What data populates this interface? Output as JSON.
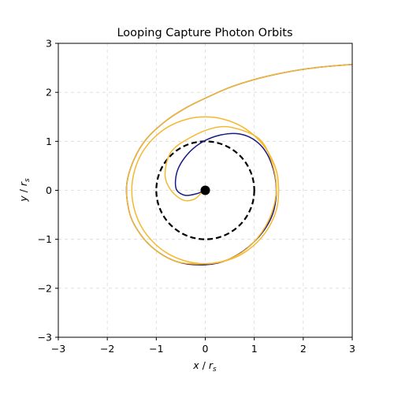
{
  "chart_data": {
    "type": "line",
    "title": "Looping Capture Photon Orbits",
    "xlabel": {
      "var": "x",
      "sep": " / ",
      "sym": "r",
      "sub": "s"
    },
    "ylabel": {
      "var": "y",
      "sep": " / ",
      "sym": "r",
      "sub": "s"
    },
    "xlim": [
      -3,
      3
    ],
    "ylim": [
      -3,
      3
    ],
    "xticks": [
      -3,
      -2,
      -1,
      0,
      1,
      2,
      3
    ],
    "yticks": [
      -3,
      -2,
      -1,
      0,
      1,
      2,
      3
    ],
    "xtick_labels": [
      "−3",
      "−2",
      "−1",
      "0",
      "1",
      "2",
      "3"
    ],
    "ytick_labels": [
      "−3",
      "−2",
      "−1",
      "0",
      "1",
      "2",
      "3"
    ],
    "grid": true,
    "series": [
      {
        "color": "#1a1a80",
        "points": [
          [
            3.0,
            2.57
          ],
          [
            2.5,
            2.53
          ],
          [
            2.0,
            2.47
          ],
          [
            1.5,
            2.38
          ],
          [
            1.0,
            2.26
          ],
          [
            0.5,
            2.1
          ],
          [
            0.0,
            1.88
          ],
          [
            -0.4,
            1.68
          ],
          [
            -0.8,
            1.42
          ],
          [
            -1.2,
            1.05
          ],
          [
            -1.45,
            0.64
          ],
          [
            -1.6,
            0.15
          ],
          [
            -1.58,
            -0.3
          ],
          [
            -1.45,
            -0.7
          ],
          [
            -1.1,
            -1.15
          ],
          [
            -0.6,
            -1.45
          ],
          [
            0.0,
            -1.52
          ],
          [
            0.5,
            -1.4
          ],
          [
            1.0,
            -1.05
          ],
          [
            1.35,
            -0.55
          ],
          [
            1.45,
            0.0
          ],
          [
            1.35,
            0.55
          ],
          [
            1.1,
            0.95
          ],
          [
            0.7,
            1.15
          ],
          [
            0.2,
            1.1
          ],
          [
            -0.25,
            0.85
          ],
          [
            -0.55,
            0.45
          ],
          [
            -0.6,
            0.05
          ],
          [
            -0.42,
            -0.1
          ],
          [
            -0.18,
            -0.07
          ],
          [
            -0.05,
            -0.02
          ]
        ]
      },
      {
        "color": "#f5b82e",
        "points": [
          [
            3.0,
            2.57
          ],
          [
            2.5,
            2.53
          ],
          [
            2.0,
            2.47
          ],
          [
            1.5,
            2.38
          ],
          [
            1.0,
            2.26
          ],
          [
            0.5,
            2.1
          ],
          [
            0.0,
            1.88
          ],
          [
            -0.4,
            1.68
          ],
          [
            -0.8,
            1.42
          ],
          [
            -1.2,
            1.05
          ],
          [
            -1.45,
            0.64
          ],
          [
            -1.6,
            0.15
          ],
          [
            -1.58,
            -0.3
          ],
          [
            -1.45,
            -0.7
          ],
          [
            -1.1,
            -1.15
          ],
          [
            -0.6,
            -1.45
          ],
          [
            0.0,
            -1.5
          ],
          [
            0.5,
            -1.4
          ],
          [
            0.95,
            -1.1
          ],
          [
            1.3,
            -0.6
          ],
          [
            1.45,
            0.0
          ],
          [
            1.35,
            0.6
          ],
          [
            1.1,
            1.05
          ],
          [
            0.6,
            1.27
          ],
          [
            0.2,
            1.28
          ],
          [
            -0.3,
            1.08
          ],
          [
            -0.7,
            0.78
          ],
          [
            -0.82,
            0.32
          ],
          [
            -0.7,
            0.0
          ],
          [
            -0.45,
            -0.2
          ],
          [
            -0.22,
            -0.18
          ],
          [
            -0.08,
            -0.05
          ]
        ]
      },
      {
        "color": "#f5b82e",
        "points": [
          [
            1.5,
            0.0
          ],
          [
            1.46,
            0.37
          ],
          [
            1.3,
            0.75
          ],
          [
            1.06,
            1.06
          ],
          [
            0.75,
            1.3
          ],
          [
            0.38,
            1.45
          ],
          [
            0.0,
            1.5
          ],
          [
            -0.38,
            1.45
          ],
          [
            -0.75,
            1.3
          ],
          [
            -1.06,
            1.06
          ],
          [
            -1.3,
            0.75
          ],
          [
            -1.45,
            0.38
          ],
          [
            -1.5,
            0.0
          ],
          [
            -1.45,
            -0.38
          ],
          [
            -1.3,
            -0.75
          ],
          [
            -1.06,
            -1.06
          ],
          [
            -0.75,
            -1.3
          ],
          [
            -0.38,
            -1.45
          ],
          [
            0.0,
            -1.5
          ],
          [
            0.38,
            -1.45
          ],
          [
            0.75,
            -1.3
          ],
          [
            1.06,
            -1.06
          ],
          [
            1.3,
            -0.75
          ],
          [
            1.46,
            -0.37
          ],
          [
            1.5,
            0.0
          ]
        ]
      }
    ],
    "photon_sphere": {
      "radius": 1.0,
      "color": "#000000",
      "style": "dashed"
    },
    "black_hole": {
      "center": [
        0,
        0
      ],
      "color": "#000000"
    }
  }
}
